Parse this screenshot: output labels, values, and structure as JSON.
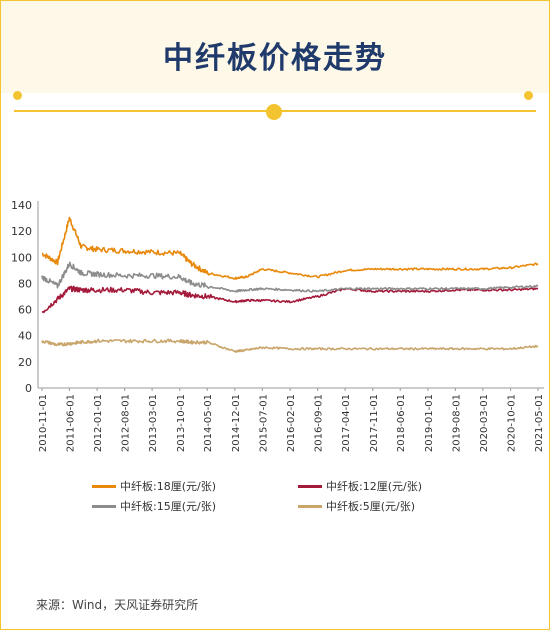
{
  "header": {
    "title": "中纤板价格走势"
  },
  "source": "来源：Wind，天风证券研究所",
  "chart_data": {
    "type": "line",
    "title": "",
    "xlabel": "",
    "ylabel": "",
    "ylim": [
      0,
      140
    ],
    "yticks": [
      0,
      20,
      40,
      60,
      80,
      100,
      120,
      140
    ],
    "legend_position": "bottom",
    "x_ticks": [
      "2010-11-01",
      "2011-06-01",
      "2012-01-01",
      "2012-08-01",
      "2013-03-01",
      "2013-10-01",
      "2014-05-01",
      "2014-12-01",
      "2015-07-01",
      "2016-02-01",
      "2016-09-01",
      "2017-04-01",
      "2017-11-01",
      "2018-06-01",
      "2019-01-01",
      "2019-08-01",
      "2020-03-01",
      "2020-10-01",
      "2021-05-01"
    ],
    "x": [
      "2010-11-01",
      "2011-03-01",
      "2011-06-01",
      "2011-09-01",
      "2012-01-01",
      "2012-08-01",
      "2013-03-01",
      "2013-10-01",
      "2014-01-01",
      "2014-05-01",
      "2014-12-01",
      "2015-03-01",
      "2015-07-01",
      "2016-02-01",
      "2016-09-01",
      "2017-04-01",
      "2017-11-01",
      "2018-06-01",
      "2019-01-01",
      "2019-08-01",
      "2020-03-01",
      "2020-10-01",
      "2021-05-01"
    ],
    "series": [
      {
        "name": "中纤板:18厘(元/张)",
        "color": "#e8890c",
        "values": [
          103,
          96,
          130,
          108,
          106,
          105,
          104,
          103,
          95,
          88,
          84,
          85,
          91,
          88,
          85,
          90,
          91,
          91,
          91,
          91,
          91,
          92,
          95
        ]
      },
      {
        "name": "中纤板:12厘(元/张)",
        "color": "#a31a3a",
        "values": [
          58,
          68,
          76,
          75,
          75,
          75,
          73,
          73,
          71,
          70,
          66,
          67,
          67,
          66,
          70,
          76,
          74,
          74,
          74,
          75,
          75,
          75,
          76
        ]
      },
      {
        "name": "中纤板:15厘(元/张)",
        "color": "#8c8c8c",
        "values": [
          85,
          78,
          95,
          88,
          87,
          86,
          86,
          85,
          80,
          78,
          74,
          75,
          76,
          75,
          74,
          76,
          76,
          76,
          76,
          76,
          76,
          77,
          78
        ]
      },
      {
        "name": "中纤板:5厘(元/张)",
        "color": "#c9a56c",
        "values": [
          36,
          33,
          34,
          35,
          36,
          36,
          36,
          36,
          35,
          35,
          28,
          29,
          31,
          30,
          30,
          30,
          30,
          30,
          30,
          30,
          30,
          30,
          32
        ]
      }
    ]
  }
}
